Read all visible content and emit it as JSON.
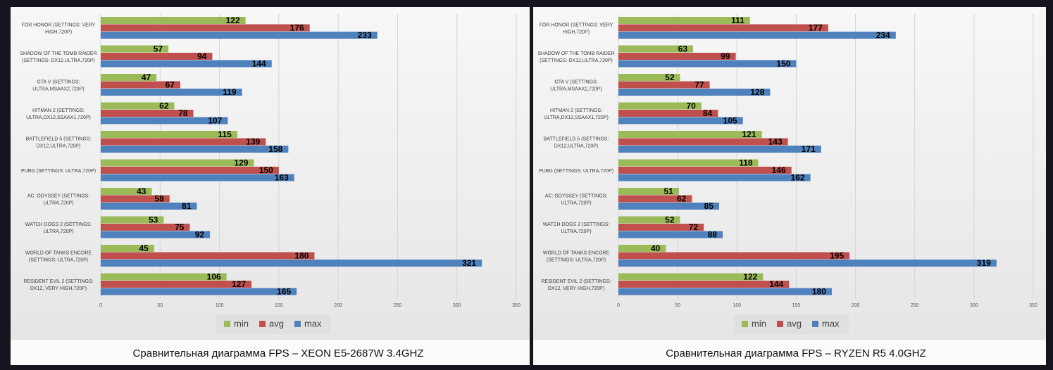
{
  "chart_data": [
    {
      "type": "bar",
      "orientation": "horizontal",
      "title": "Сравнительная диаграмма FPS – XEON E5-2687W 3.4GHZ",
      "categories": [
        "FOR HONOR (SETTINGS: VERY HIGH,720P)",
        "SHADOW OF THE TOMB RAIDER (SETTINGS: DX12,ULTRA,720P)",
        "GTA V (SETTINGS: ULTRA,MSAAX2,720P)",
        "HITMAN 2 (SETTINGS: ULTRA,DX12,SSAAX1,720P)",
        "BATTLEFIELD 5 (SETTINGS: DX12,ULTRA,720P)",
        "PUBG (SETTINGS: ULTRA,720P)",
        "AC: ODYSSEY (SETTINGS: ULTRA,720P)",
        "WATCH DOGS 2 (SETTINGS: ULTRA,720P)",
        "WORLD OF TANKS ENCORE (SETTINGS: ULTRA,720P)",
        "RESIDENT EVIL 2 (SETTINGS: DX12, VERY HIGH,720P)"
      ],
      "series": [
        {
          "name": "min",
          "color": "#9bbb59",
          "values": [
            122,
            57,
            47,
            62,
            115,
            129,
            43,
            53,
            45,
            106
          ]
        },
        {
          "name": "avg",
          "color": "#c0504d",
          "values": [
            176,
            94,
            67,
            78,
            139,
            150,
            58,
            75,
            180,
            127
          ]
        },
        {
          "name": "max",
          "color": "#4f81bd",
          "values": [
            233,
            144,
            119,
            107,
            158,
            163,
            81,
            92,
            321,
            165
          ]
        }
      ],
      "xlim": [
        0,
        350
      ],
      "xticks": [
        0,
        50,
        100,
        150,
        200,
        250,
        300,
        350
      ],
      "grid": true,
      "legend": "bottom"
    },
    {
      "type": "bar",
      "orientation": "horizontal",
      "title": "Сравнительная диаграмма FPS – RYZEN R5 4.0GHZ",
      "categories": [
        "FOR HONOR (SETTINGS: VERY HIGH,720P)",
        "SHADOW OF THE TOMB RAIDER (SETTINGS: DX12,ULTRA,720P)",
        "GTA V (SETTINGS: ULTRA,MSAAX2,720P)",
        "HITMAN 2 (SETTINGS: ULTRA,DX12,SSAAX1,720P)",
        "BATTLEFIELD 5 (SETTINGS: DX12,ULTRA,720P)",
        "PUBG (SETTINGS: ULTRA,720P)",
        "AC: ODYSSEY (SETTINGS: ULTRA,720P)",
        "WATCH DOGS 2 (SETTINGS: ULTRA,720P)",
        "WORLD OF TANKS ENCORE (SETTINGS: ULTRA,720P)",
        "RESIDENT EVIL 2 (SETTINGS: DX12, VERY HIGH,720P)"
      ],
      "series": [
        {
          "name": "min",
          "color": "#9bbb59",
          "values": [
            111,
            63,
            52,
            70,
            121,
            118,
            51,
            52,
            40,
            122
          ]
        },
        {
          "name": "avg",
          "color": "#c0504d",
          "values": [
            177,
            99,
            77,
            84,
            143,
            146,
            62,
            72,
            195,
            144
          ]
        },
        {
          "name": "max",
          "color": "#4f81bd",
          "values": [
            234,
            150,
            128,
            105,
            171,
            162,
            85,
            88,
            319,
            180
          ]
        }
      ],
      "xlim": [
        0,
        350
      ],
      "xticks": [
        0,
        50,
        100,
        150,
        200,
        250,
        300,
        350
      ],
      "grid": true,
      "legend": "bottom"
    }
  ]
}
